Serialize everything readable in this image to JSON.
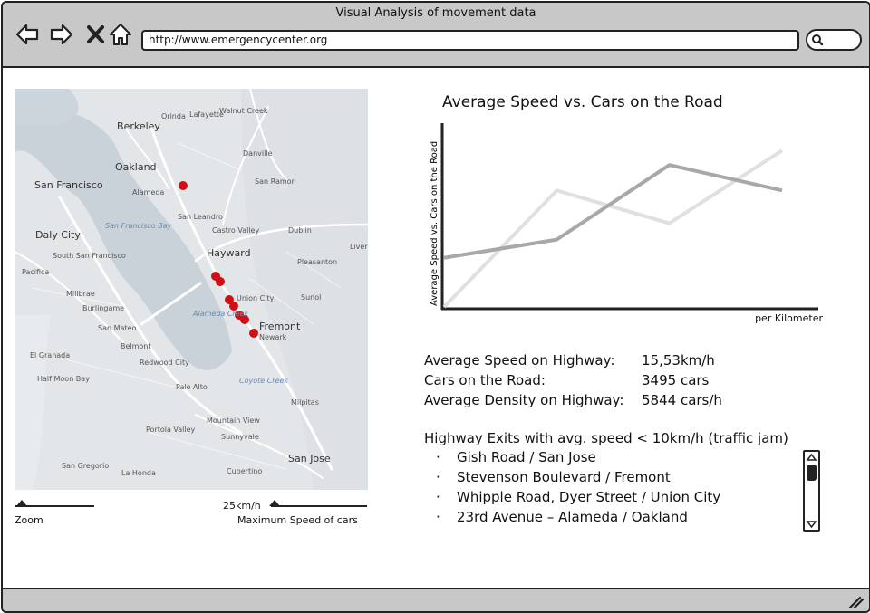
{
  "window": {
    "title": "Visual Analysis of movement data",
    "url": "http://www.emergencycenter.org"
  },
  "icons": {
    "back": "arrow-left-icon",
    "forward": "arrow-right-icon",
    "stop": "close-icon",
    "home": "home-icon",
    "search": "search-icon",
    "resize": "resize-grip-icon"
  },
  "map": {
    "labels": [
      "Berkeley",
      "Oakland",
      "Alameda",
      "San Francisco",
      "Daly City",
      "South San Francisco",
      "Pacifica",
      "Millbrae",
      "Burlingame",
      "San Mateo",
      "Belmont",
      "Redwood City",
      "Half Moon Bay",
      "El Granada",
      "Palo Alto",
      "Mountain View",
      "Sunnyvale",
      "Portola Valley",
      "San Jose",
      "San Gregorio",
      "La Honda",
      "Cupertino",
      "Hayward",
      "San Leandro",
      "Castro Valley",
      "Danville",
      "San Ramon",
      "Dublin",
      "Pleasanton",
      "Livermore",
      "Union City",
      "Fremont",
      "Newark",
      "Milpitas",
      "Sunol",
      "Orinda",
      "Lafayette",
      "Walnut Creek",
      "San Francisco Bay",
      "Coyote Creek",
      "Alameda Creek"
    ],
    "incidents": [
      {
        "name": "Oakland"
      },
      {
        "name": "Hayward 1"
      },
      {
        "name": "Hayward 2"
      },
      {
        "name": "Union City 1"
      },
      {
        "name": "Union City 2"
      },
      {
        "name": "Union City 3"
      },
      {
        "name": "Fremont 1"
      },
      {
        "name": "Newark"
      }
    ],
    "incident_color": "#d10f14"
  },
  "controls": {
    "zoom_label": "Zoom",
    "speed_value": "25km/h",
    "speed_label": "Maximum Speed of cars"
  },
  "chart_data": {
    "type": "line",
    "title": "Average Speed vs. Cars on the Road",
    "ylabel": "Average Speed vs. Cars on the Road",
    "xlabel": "per Kilometer",
    "x": [
      0,
      1,
      2,
      3
    ],
    "series": [
      {
        "values": [
          0,
          0.64,
          0.46,
          0.86
        ],
        "color": "#e0e0e0"
      },
      {
        "values": [
          0.27,
          0.37,
          0.78,
          0.64
        ],
        "color": "#a8a8a8"
      }
    ],
    "ylim": [
      0,
      1
    ],
    "grid": false
  },
  "stats": [
    {
      "label": "Average Speed on Highway:",
      "value": "15,53km/h"
    },
    {
      "label": "Cars on the Road:",
      "value": "3495 cars"
    },
    {
      "label": "Average Density on Highway:",
      "value": "5844 cars/h"
    }
  ],
  "jams": {
    "title": "Highway Exits with avg. speed < 10km/h (traffic jam)",
    "bullet": "·",
    "items": [
      "Gish Road / San Jose",
      "Stevenson Boulevard / Fremont",
      "Whipple Road, Dyer Street / Union City",
      "23rd Avenue – Alameda / Oakland"
    ]
  }
}
